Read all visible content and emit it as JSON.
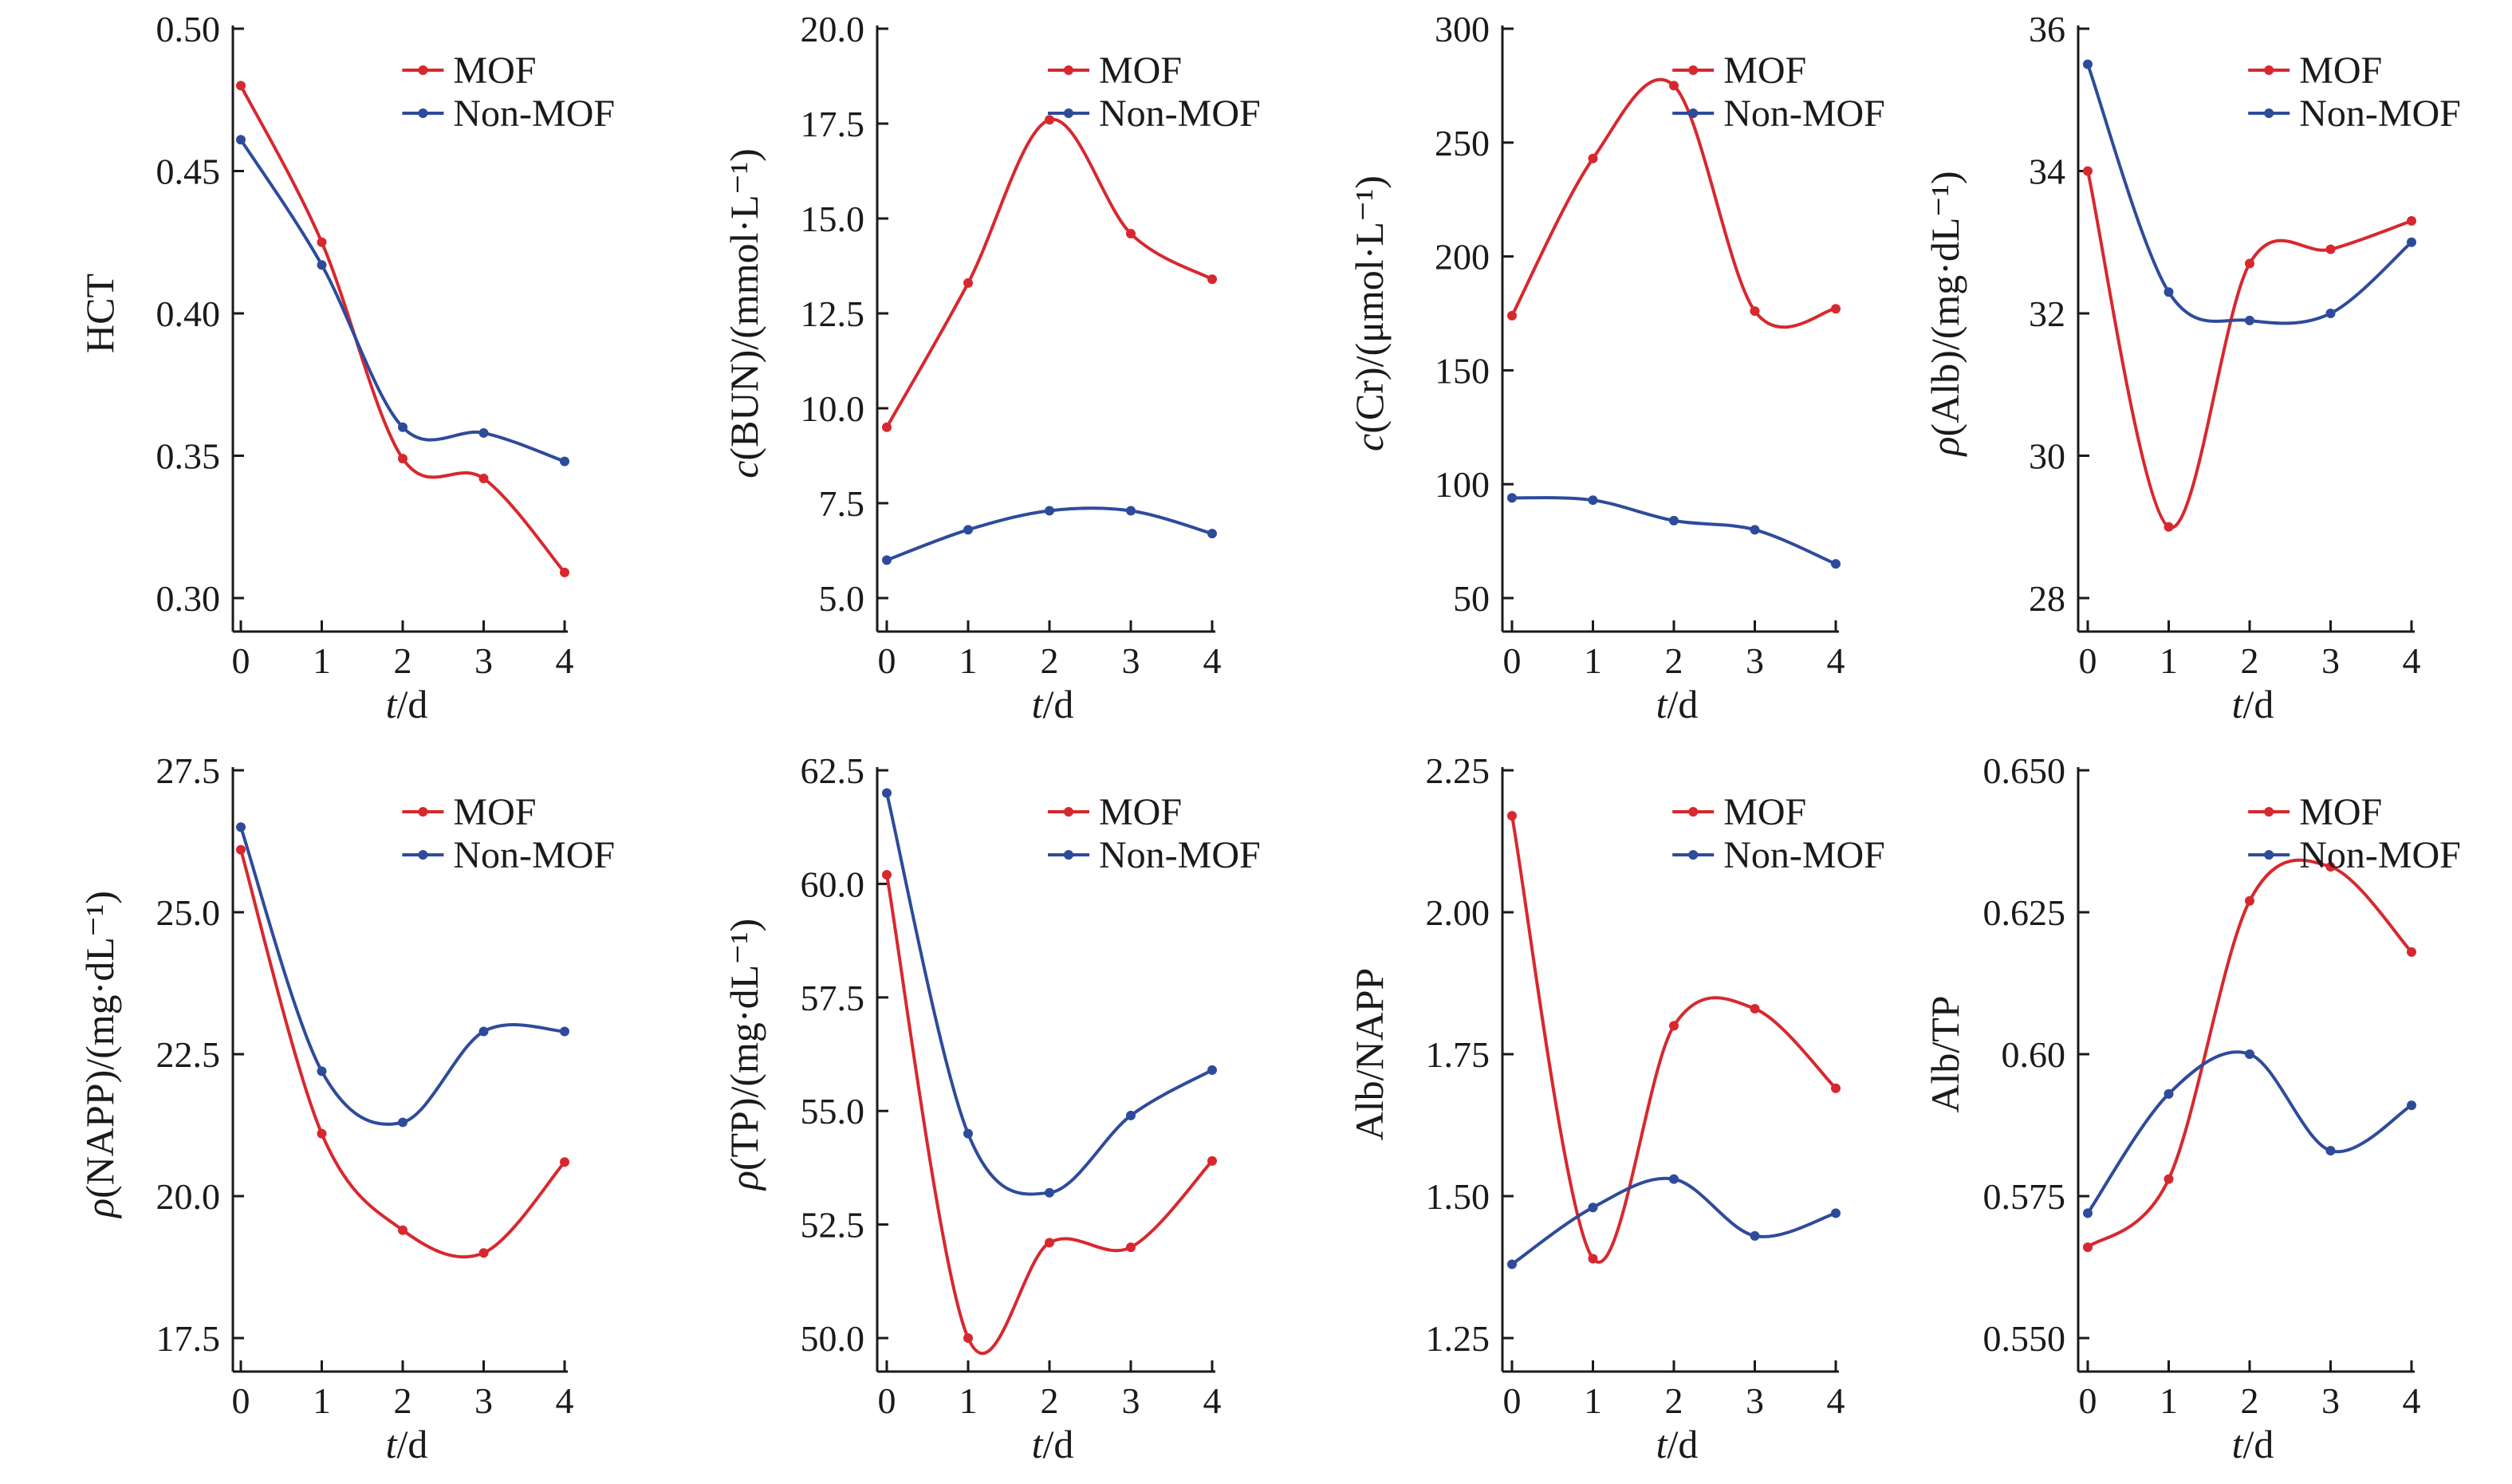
{
  "colors": {
    "MOF": "#d7282e",
    "Non-MOF": "#2e4b9b",
    "axis": "#1a1a1a"
  },
  "legend_placement": "top-right",
  "chart_data": [
    {
      "type": "line",
      "xlabel": "t/d",
      "ylabel": "HCT",
      "x": [
        0,
        1,
        2,
        3,
        4
      ],
      "xlim": [
        0,
        4
      ],
      "ylim": [
        0.3,
        0.5
      ],
      "yticks": [
        "0.30",
        "0.35",
        "0.40",
        "0.45",
        "0.50"
      ],
      "xticks": [
        "0",
        "1",
        "2",
        "3",
        "4"
      ],
      "series": [
        {
          "name": "MOF",
          "values": [
            0.48,
            0.425,
            0.349,
            0.342,
            0.309
          ]
        },
        {
          "name": "Non-MOF",
          "values": [
            0.461,
            0.417,
            0.36,
            0.358,
            0.348
          ]
        }
      ]
    },
    {
      "type": "line",
      "xlabel": "t/d",
      "ylabel": "c(BUN)/(mmol·L⁻¹)",
      "x": [
        0,
        1,
        2,
        3,
        4
      ],
      "xlim": [
        0,
        4
      ],
      "ylim": [
        5.0,
        20.0
      ],
      "yticks": [
        "5.0",
        "7.5",
        "10.0",
        "12.5",
        "15.0",
        "17.5",
        "20.0"
      ],
      "xticks": [
        "0",
        "1",
        "2",
        "3",
        "4"
      ],
      "series": [
        {
          "name": "MOF",
          "values": [
            9.5,
            13.3,
            17.6,
            14.6,
            13.4
          ]
        },
        {
          "name": "Non-MOF",
          "values": [
            6.0,
            6.8,
            7.3,
            7.3,
            6.7
          ]
        }
      ]
    },
    {
      "type": "line",
      "xlabel": "t/d",
      "ylabel": "c(Cr)/(μmol·L⁻¹)",
      "x": [
        0,
        1,
        2,
        3,
        4
      ],
      "xlim": [
        0,
        4
      ],
      "ylim": [
        50,
        300
      ],
      "yticks": [
        "50",
        "100",
        "150",
        "200",
        "250",
        "300"
      ],
      "xticks": [
        "0",
        "1",
        "2",
        "3",
        "4"
      ],
      "series": [
        {
          "name": "MOF",
          "values": [
            174,
            243,
            275,
            176,
            177
          ]
        },
        {
          "name": "Non-MOF",
          "values": [
            94,
            93,
            84,
            80,
            65
          ]
        }
      ]
    },
    {
      "type": "line",
      "xlabel": "t/d",
      "ylabel": "ρ(Alb)/(mg·dL⁻¹)",
      "x": [
        0,
        1,
        2,
        3,
        4
      ],
      "xlim": [
        0,
        4
      ],
      "ylim": [
        28,
        36
      ],
      "ytick_values": [
        28,
        30,
        32,
        34,
        36
      ],
      "yticks": [
        "28",
        "30",
        "32",
        "34",
        "36"
      ],
      "xticks": [
        "0",
        "1",
        "2",
        "3",
        "4"
      ],
      "series": [
        {
          "name": "MOF",
          "values": [
            34.0,
            29.0,
            32.7,
            32.9,
            33.3
          ]
        },
        {
          "name": "Non-MOF",
          "values": [
            35.5,
            32.3,
            31.9,
            32.0,
            33.0
          ]
        }
      ]
    },
    {
      "type": "line",
      "xlabel": "t/d",
      "ylabel": "ρ(NAPP)/(mg·dL⁻¹)",
      "x": [
        0,
        1,
        2,
        3,
        4
      ],
      "xlim": [
        0,
        4
      ],
      "ylim": [
        17.5,
        27.5
      ],
      "yticks": [
        "17.5",
        "20.0",
        "22.5",
        "25.0",
        "27.5"
      ],
      "xticks": [
        "0",
        "1",
        "2",
        "3",
        "4"
      ],
      "series": [
        {
          "name": "MOF",
          "values": [
            26.1,
            21.1,
            19.4,
            19.0,
            20.6
          ]
        },
        {
          "name": "Non-MOF",
          "values": [
            26.5,
            22.2,
            21.3,
            22.9,
            22.9
          ]
        }
      ]
    },
    {
      "type": "line",
      "xlabel": "t/d",
      "ylabel": "ρ(TP)/(mg·dL⁻¹)",
      "x": [
        0,
        1,
        2,
        3,
        4
      ],
      "xlim": [
        0,
        4
      ],
      "ylim": [
        50.0,
        62.5
      ],
      "yticks": [
        "50.0",
        "52.5",
        "55.0",
        "57.5",
        "60.0",
        "62.5"
      ],
      "xticks": [
        "0",
        "1",
        "2",
        "3",
        "4"
      ],
      "series": [
        {
          "name": "MOF",
          "values": [
            60.2,
            50.0,
            52.1,
            52.0,
            53.9
          ]
        },
        {
          "name": "Non-MOF",
          "values": [
            62.0,
            54.5,
            53.2,
            54.9,
            55.9
          ]
        }
      ]
    },
    {
      "type": "line",
      "xlabel": "t/d",
      "ylabel": "Alb/NAPP",
      "x": [
        0,
        1,
        2,
        3,
        4
      ],
      "xlim": [
        0,
        4
      ],
      "ylim": [
        1.25,
        2.25
      ],
      "yticks": [
        "1.25",
        "1.50",
        "1.75",
        "2.00",
        "2.25"
      ],
      "xticks": [
        "0",
        "1",
        "2",
        "3",
        "4"
      ],
      "series": [
        {
          "name": "MOF",
          "values": [
            2.17,
            1.39,
            1.8,
            1.83,
            1.69
          ]
        },
        {
          "name": "Non-MOF",
          "values": [
            1.38,
            1.48,
            1.53,
            1.43,
            1.47
          ]
        }
      ]
    },
    {
      "type": "line",
      "xlabel": "t/d",
      "ylabel": "Alb/TP",
      "x": [
        0,
        1,
        2,
        3,
        4
      ],
      "xlim": [
        0,
        4
      ],
      "ylim": [
        0.55,
        0.65
      ],
      "yticks": [
        "0.550",
        "0.575",
        "0.60",
        "0.625",
        "0.650"
      ],
      "xticks": [
        "0",
        "1",
        "2",
        "3",
        "4"
      ],
      "series": [
        {
          "name": "MOF",
          "values": [
            0.566,
            0.578,
            0.627,
            0.633,
            0.618
          ]
        },
        {
          "name": "Non-MOF",
          "values": [
            0.572,
            0.593,
            0.6,
            0.583,
            0.591
          ]
        }
      ]
    }
  ]
}
